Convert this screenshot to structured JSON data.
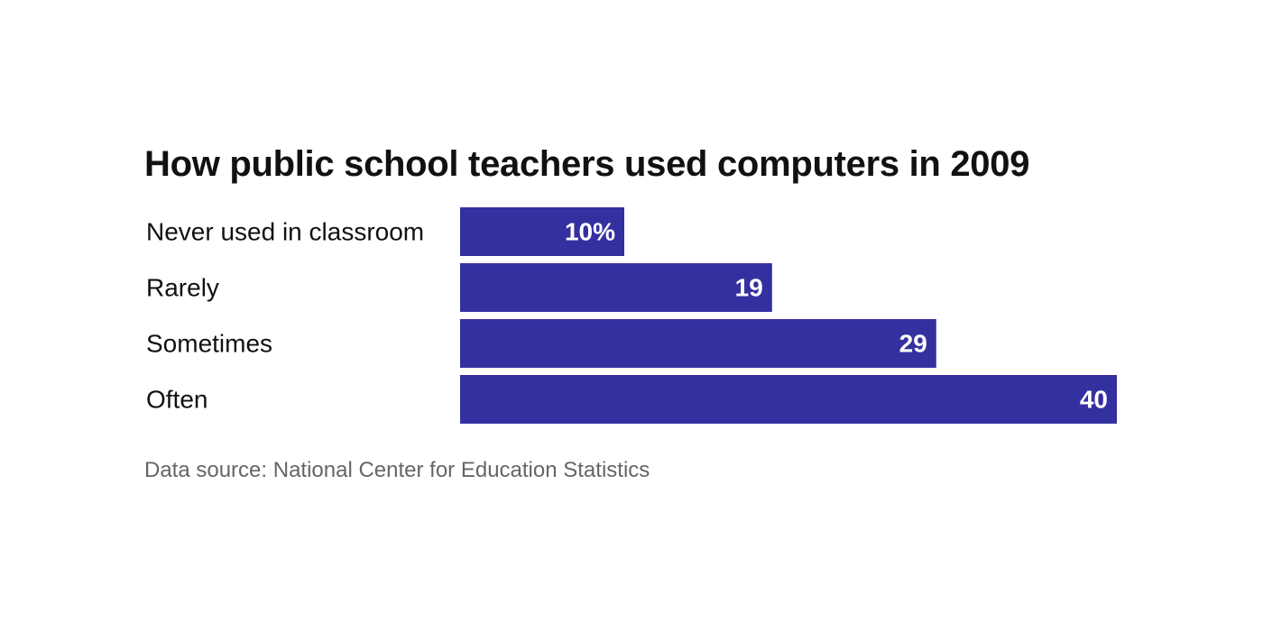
{
  "chart_data": {
    "type": "bar",
    "orientation": "horizontal",
    "title": "How public school teachers used computers in 2009",
    "categories": [
      "Never used in classroom",
      "Rarely",
      "Sometimes",
      "Often"
    ],
    "values": [
      10,
      19,
      29,
      40
    ],
    "value_labels": [
      "10%",
      "19",
      "29",
      "40"
    ],
    "xlim": [
      0,
      40
    ],
    "grid": false,
    "bar_color": "#3530a0",
    "source": "Data source: National Center for Education Statistics"
  }
}
